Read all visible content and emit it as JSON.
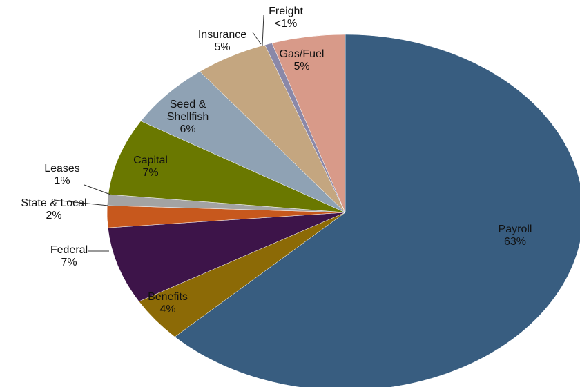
{
  "chart_data": {
    "type": "pie",
    "categories": [
      "Payroll",
      "Benefits",
      "Federal",
      "State & Local",
      "Leases",
      "Capital",
      "Seed & Shellfish",
      "Insurance",
      "Freight",
      "Gas/Fuel"
    ],
    "values": [
      63,
      4,
      7,
      2,
      1,
      7,
      6,
      5,
      0.5,
      5
    ],
    "value_labels": [
      "63%",
      "4%",
      "7%",
      "2%",
      "1%",
      "7%",
      "6%",
      "5%",
      "<1%",
      "5%"
    ],
    "colors": [
      "#385d80",
      "#8c6a06",
      "#3d1449",
      "#c7581d",
      "#a3a3a3",
      "#6a7800",
      "#8fa2b4",
      "#c4a680",
      "#8a88a8",
      "#d89a89"
    ]
  }
}
